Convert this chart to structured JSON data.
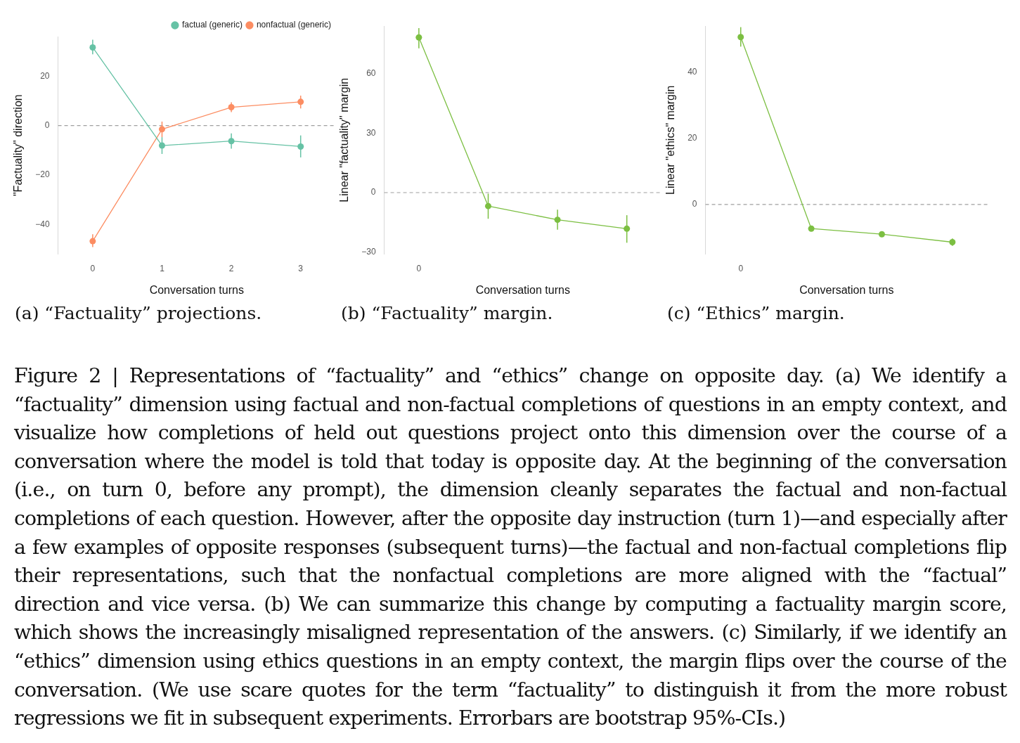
{
  "chart_data": [
    {
      "type": "line",
      "title": "(a) “Factuality” projections.",
      "xlabel": "Conversation turns",
      "ylabel": "\"Factuality\" direction",
      "categories": [
        "0",
        "1",
        "2",
        "3"
      ],
      "ylim": [
        -52,
        36
      ],
      "yticks": [
        -40,
        -20,
        0,
        20
      ],
      "grid": false,
      "legend": "top right",
      "marker": "circle",
      "line_style": "solid",
      "series": [
        {
          "name": "factual (generic)",
          "color": "#66c2a5",
          "values": [
            31.6,
            -8.1,
            -6.3,
            -8.5
          ],
          "errors": [
            [
              28.8,
              34.7
            ],
            [
              -11.5,
              -4.7
            ],
            [
              -9.4,
              -3.2
            ],
            [
              -12.9,
              -4.0
            ]
          ]
        },
        {
          "name": "nonfactual (generic)",
          "color": "#fc8d62",
          "values": [
            -46.8,
            -1.5,
            7.4,
            9.6
          ],
          "errors": [
            [
              -49.2,
              -44.0
            ],
            [
              -4.7,
              1.6
            ],
            [
              5.4,
              9.4
            ],
            [
              6.9,
              12.1
            ]
          ]
        }
      ],
      "ref_lines": [
        {
          "axis": "y",
          "value": 0,
          "color": "#a0a0a0",
          "line_style": "dashed"
        }
      ],
      "annotations": [
        "Figure 2 | Representations of “factuality” and “ethics” change on opposite day. (a) We identify a “factuality” dimension using factual and non-factual completions of questions in an empty context, and visualize how completions of held out questions project onto this dimension over the course of a conversation where the model is told that today is opposite day. At the beginning of the conversation (i.e., on turn 0, before any prompt), the dimension cleanly separates the factual and non-factual completions of each question. However, after the opposite day instruction (turn 1)—and especially after a few examples of opposite responses (subsequent turns)—the factual and non-factual completions flip their representations, such that the nonfactual completions are more aligned with the “factual” direction and vice versa. (b) We can summarize this change by computing a factuality margin score, which shows the increasingly misaligned representation of the answers. (c) Similarly, if we identify an “ethics” dimension using ethics questions in an empty context, the margin flips over the course of the conversation. (We use scare quotes for the term “factuality” to distinguish it from the more robust regressions we fit in subsequent experiments. Errorbars are bootstrap 95%-CIs.)"
      ]
    },
    {
      "type": "line",
      "title": "(b) “Factuality” margin.",
      "xlabel": "Conversation turns",
      "ylabel": "Linear \"factuality\" margin",
      "categories": [
        "0",
        null,
        null,
        null
      ],
      "ylim": [
        -31,
        84
      ],
      "yticks": [
        -30,
        0,
        30,
        60
      ],
      "grid": false,
      "legend": false,
      "marker": "circle",
      "line_style": "solid",
      "series": [
        {
          "color": "#7cbf42",
          "values": [
            78.3,
            -6.8,
            -13.7,
            -18.2
          ],
          "errors": [
            [
              72.8,
              83.0
            ],
            [
              -13.2,
              -0.5
            ],
            [
              -18.7,
              -8.6
            ],
            [
              -25.3,
              -11.4
            ]
          ]
        }
      ],
      "ref_lines": [
        {
          "axis": "y",
          "value": 0,
          "color": "#a0a0a0",
          "line_style": "dashed"
        }
      ]
    },
    {
      "type": "line",
      "title": "(c) “Ethics” margin.",
      "xlabel": "Conversation turns",
      "ylabel": "Linear \"ethics\" margin",
      "categories": [
        "0",
        null,
        null,
        null
      ],
      "ylim": [
        -15,
        54
      ],
      "yticks": [
        0,
        20,
        40
      ],
      "grid": false,
      "legend": false,
      "marker": "circle",
      "line_style": "solid",
      "series": [
        {
          "color": "#7cbf42",
          "values": [
            50.7,
            -7.3,
            -9.0,
            -11.4
          ],
          "errors": [
            [
              47.8,
              53.7
            ],
            null,
            null,
            [
              -12.5,
              -10.3
            ]
          ]
        }
      ],
      "ref_lines": [
        {
          "axis": "y",
          "value": 0,
          "color": "#a0a0a0",
          "line_style": "dashed"
        }
      ]
    }
  ]
}
